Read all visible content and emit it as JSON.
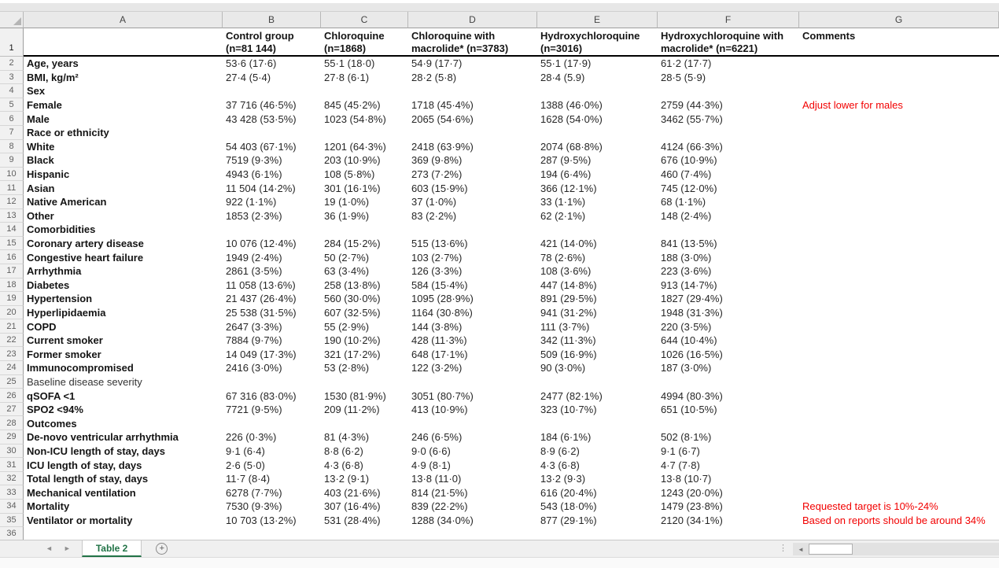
{
  "colors": {
    "tab_green": "#217346",
    "comment_red": "#f20000",
    "header_border_black": "#000000"
  },
  "sheet": {
    "column_letters": [
      "A",
      "B",
      "C",
      "D",
      "E",
      "F",
      "G"
    ],
    "header_row": {
      "num": "1",
      "cells": [
        "",
        "Control group\n(n=81 144)",
        "Chloroquine\n(n=1868)",
        "Chloroquine with\nmacrolide* (n=3783)",
        "Hydroxychloroquine\n(n=3016)",
        "Hydroxychloroquine with\nmacrolide* (n=6221)",
        "Comments"
      ]
    },
    "rows": [
      {
        "num": "2",
        "label": "Age, years",
        "bold": true,
        "values": [
          "53·6 (17·6)",
          "55·1 (18·0)",
          "54·9 (17·7)",
          "55·1 (17·9)",
          "61·2 (17·7)"
        ],
        "comment": ""
      },
      {
        "num": "3",
        "label": "BMI, kg/m²",
        "bold": true,
        "values": [
          "27·4 (5·4)",
          "27·8 (6·1)",
          "28·2 (5·8)",
          "28·4 (5.9)",
          "28·5 (5·9)"
        ],
        "comment": ""
      },
      {
        "num": "4",
        "label": "Sex",
        "bold": true,
        "values": [
          "",
          "",
          "",
          "",
          ""
        ],
        "comment": ""
      },
      {
        "num": "5",
        "label": "Female",
        "bold": true,
        "values": [
          "37 716 (46·5%)",
          "845 (45·2%)",
          "1718 (45·4%)",
          "1388 (46·0%)",
          "2759 (44·3%)"
        ],
        "comment": "Adjust lower for males"
      },
      {
        "num": "6",
        "label": "Male",
        "bold": true,
        "values": [
          "43 428 (53·5%)",
          "1023 (54·8%)",
          "2065 (54·6%)",
          "1628 (54·0%)",
          "3462 (55·7%)"
        ],
        "comment": ""
      },
      {
        "num": "7",
        "label": "Race or ethnicity",
        "bold": true,
        "values": [
          "",
          "",
          "",
          "",
          ""
        ],
        "comment": ""
      },
      {
        "num": "8",
        "label": "White",
        "bold": true,
        "values": [
          "54 403 (67·1%)",
          "1201 (64·3%)",
          "2418 (63·9%)",
          "2074 (68·8%)",
          "4124 (66·3%)"
        ],
        "comment": ""
      },
      {
        "num": "9",
        "label": "Black",
        "bold": true,
        "values": [
          "7519 (9·3%)",
          "203 (10·9%)",
          "369 (9·8%)",
          "287 (9·5%)",
          "676 (10·9%)"
        ],
        "comment": ""
      },
      {
        "num": "10",
        "label": "Hispanic",
        "bold": true,
        "values": [
          "4943 (6·1%)",
          "108 (5·8%)",
          "273 (7·2%)",
          "194 (6·4%)",
          "460 (7·4%)"
        ],
        "comment": ""
      },
      {
        "num": "11",
        "label": "Asian",
        "bold": true,
        "values": [
          "11 504 (14·2%)",
          "301 (16·1%)",
          "603 (15·9%)",
          "366 (12·1%)",
          "745 (12·0%)"
        ],
        "comment": ""
      },
      {
        "num": "12",
        "label": "Native American",
        "bold": true,
        "values": [
          "922 (1·1%)",
          "19 (1·0%)",
          "37 (1·0%)",
          "33 (1·1%)",
          "68 (1·1%)"
        ],
        "comment": ""
      },
      {
        "num": "13",
        "label": "Other",
        "bold": true,
        "values": [
          "1853 (2·3%)",
          "36 (1·9%)",
          "83 (2·2%)",
          "62 (2·1%)",
          "148 (2·4%)"
        ],
        "comment": ""
      },
      {
        "num": "14",
        "label": "Comorbidities",
        "bold": true,
        "values": [
          "",
          "",
          "",
          "",
          ""
        ],
        "comment": ""
      },
      {
        "num": "15",
        "label": "Coronary artery disease",
        "bold": true,
        "values": [
          "10 076 (12·4%)",
          "284 (15·2%)",
          "515 (13·6%)",
          "421 (14·0%)",
          "841 (13·5%)"
        ],
        "comment": ""
      },
      {
        "num": "16",
        "label": "Congestive heart failure",
        "bold": true,
        "values": [
          "1949 (2·4%)",
          "50 (2·7%)",
          "103 (2·7%)",
          "78 (2·6%)",
          "188 (3·0%)"
        ],
        "comment": ""
      },
      {
        "num": "17",
        "label": "Arrhythmia",
        "bold": true,
        "values": [
          "2861 (3·5%)",
          "63 (3·4%)",
          "126 (3·3%)",
          "108 (3·6%)",
          "223 (3·6%)"
        ],
        "comment": ""
      },
      {
        "num": "18",
        "label": "Diabetes",
        "bold": true,
        "values": [
          "11 058 (13·6%)",
          "258 (13·8%)",
          "584 (15·4%)",
          "447 (14·8%)",
          "913 (14·7%)"
        ],
        "comment": ""
      },
      {
        "num": "19",
        "label": "Hypertension",
        "bold": true,
        "values": [
          "21 437 (26·4%)",
          "560 (30·0%)",
          "1095 (28·9%)",
          "891 (29·5%)",
          "1827 (29·4%)"
        ],
        "comment": ""
      },
      {
        "num": "20",
        "label": "Hyperlipidaemia",
        "bold": true,
        "values": [
          "25 538 (31·5%)",
          "607 (32·5%)",
          "1164 (30·8%)",
          "941 (31·2%)",
          "1948 (31·3%)"
        ],
        "comment": ""
      },
      {
        "num": "21",
        "label": "COPD",
        "bold": true,
        "values": [
          "2647 (3·3%)",
          "55 (2·9%)",
          "144 (3·8%)",
          "111 (3·7%)",
          "220 (3·5%)"
        ],
        "comment": ""
      },
      {
        "num": "22",
        "label": "Current smoker",
        "bold": true,
        "values": [
          "7884 (9·7%)",
          "190 (10·2%)",
          "428 (11·3%)",
          "342 (11·3%)",
          "644 (10·4%)"
        ],
        "comment": ""
      },
      {
        "num": "23",
        "label": "Former smoker",
        "bold": true,
        "values": [
          "14 049 (17·3%)",
          "321 (17·2%)",
          "648 (17·1%)",
          "509 (16·9%)",
          "1026 (16·5%)"
        ],
        "comment": ""
      },
      {
        "num": "24",
        "label": "Immunocompromised",
        "bold": true,
        "values": [
          "2416 (3·0%)",
          "53 (2·8%)",
          "122 (3·2%)",
          "90 (3·0%)",
          "187 (3·0%)"
        ],
        "comment": ""
      },
      {
        "num": "25",
        "label": "Baseline disease severity",
        "bold": false,
        "values": [
          "",
          "",
          "",
          "",
          ""
        ],
        "comment": ""
      },
      {
        "num": "26",
        "label": "qSOFA <1",
        "bold": true,
        "values": [
          "67 316 (83·0%)",
          "1530 (81·9%)",
          "3051 (80·7%)",
          "2477 (82·1%)",
          "4994 (80·3%)"
        ],
        "comment": ""
      },
      {
        "num": "27",
        "label": "SPO2 <94%",
        "bold": true,
        "values": [
          "7721 (9·5%)",
          "209 (11·2%)",
          "413 (10·9%)",
          "323 (10·7%)",
          "651 (10·5%)"
        ],
        "comment": ""
      },
      {
        "num": "28",
        "label": "Outcomes",
        "bold": true,
        "values": [
          "",
          "",
          "",
          "",
          ""
        ],
        "comment": ""
      },
      {
        "num": "29",
        "label": "De-novo ventricular arrhythmia",
        "bold": true,
        "values": [
          "226 (0·3%)",
          "81 (4·3%)",
          "246 (6·5%)",
          "184 (6·1%)",
          "502 (8·1%)"
        ],
        "comment": ""
      },
      {
        "num": "30",
        "label": "Non-ICU length of stay, days",
        "bold": true,
        "values": [
          "9·1 (6·4)",
          "8·8 (6·2)",
          "9·0 (6·6)",
          "8·9 (6·2)",
          "9·1 (6·7)"
        ],
        "comment": ""
      },
      {
        "num": "31",
        "label": "ICU length  of stay, days",
        "bold": true,
        "values": [
          "2·6 (5·0)",
          "4·3 (6·8)",
          "4·9 (8·1)",
          "4·3 (6·8)",
          "4·7 (7·8)"
        ],
        "comment": ""
      },
      {
        "num": "32",
        "label": "Total length of stay, days",
        "bold": true,
        "values": [
          "11·7 (8·4)",
          "13·2 (9·1)",
          "13·8 (11·0)",
          "13·2 (9·3)",
          "13·8 (10·7)"
        ],
        "comment": ""
      },
      {
        "num": "33",
        "label": "Mechanical ventilation",
        "bold": true,
        "values": [
          "6278 (7·7%)",
          "403 (21·6%)",
          "814 (21·5%)",
          "616 (20·4%)",
          "1243 (20·0%)"
        ],
        "comment": ""
      },
      {
        "num": "34",
        "label": "Mortality",
        "bold": true,
        "values": [
          "7530 (9·3%)",
          "307 (16·4%)",
          "839 (22·2%)",
          "543 (18·0%)",
          "1479 (23·8%)"
        ],
        "comment": "Requested target is 10%-24%"
      },
      {
        "num": "35",
        "label": "Ventilator or mortality",
        "bold": true,
        "values": [
          "10 703 (13·2%)",
          "531 (28·4%)",
          "1288 (34·0%)",
          "877 (29·1%)",
          "2120 (34·1%)"
        ],
        "comment": "Based on reports should be around 34%"
      },
      {
        "num": "36",
        "label": "",
        "bold": true,
        "values": [
          "",
          "",
          "",
          "",
          ""
        ],
        "comment": ""
      }
    ]
  },
  "tab_bar": {
    "active_tab": "Table 2",
    "nav_left_icon": "◄",
    "nav_right_icon": "►",
    "add_sheet_icon": "+",
    "scroll_left_icon": "◄",
    "drag_handle_icon": "⋮"
  }
}
